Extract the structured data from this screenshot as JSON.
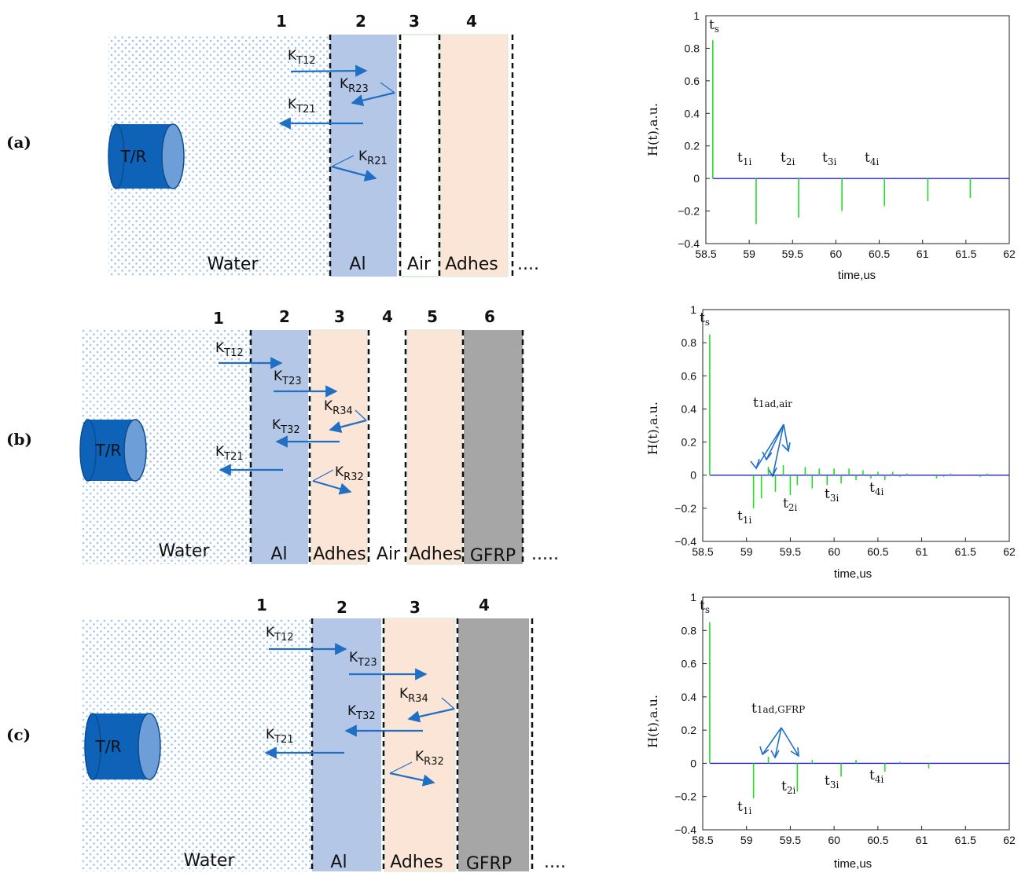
{
  "panels": [
    {
      "id": "a",
      "label": "(a)",
      "transducer": "T/R",
      "layer_numbers": [
        "1",
        "2",
        "3",
        "4"
      ],
      "layers": [
        "Water",
        "Al",
        "Air",
        "Adhes"
      ],
      "ellipsis": "....",
      "coefficients": [
        {
          "main": "K",
          "sub": "T12"
        },
        {
          "main": "K",
          "sub": "R23"
        },
        {
          "main": "K",
          "sub": "T21"
        },
        {
          "main": "K",
          "sub": "R21"
        }
      ]
    },
    {
      "id": "b",
      "label": "(b)",
      "transducer": "T/R",
      "layer_numbers": [
        "1",
        "2",
        "3",
        "4",
        "5",
        "6"
      ],
      "layers": [
        "Water",
        "Al",
        "Adhes",
        "Air",
        "Adhes",
        "GFRP"
      ],
      "ellipsis": ".....",
      "coefficients": [
        {
          "main": "K",
          "sub": "T12"
        },
        {
          "main": "K",
          "sub": "T23"
        },
        {
          "main": "K",
          "sub": "R34"
        },
        {
          "main": "K",
          "sub": "T32"
        },
        {
          "main": "K",
          "sub": "T21"
        },
        {
          "main": "K",
          "sub": "R32"
        }
      ]
    },
    {
      "id": "c",
      "label": "(c)",
      "transducer": "T/R",
      "layer_numbers": [
        "1",
        "2",
        "3",
        "4"
      ],
      "layers": [
        "Water",
        "Al",
        "Adhes",
        "GFRP"
      ],
      "ellipsis": "....",
      "coefficients": [
        {
          "main": "K",
          "sub": "T12"
        },
        {
          "main": "K",
          "sub": "T23"
        },
        {
          "main": "K",
          "sub": "R34"
        },
        {
          "main": "K",
          "sub": "T32"
        },
        {
          "main": "K",
          "sub": "T21"
        },
        {
          "main": "K",
          "sub": "R32"
        }
      ]
    }
  ],
  "colors": {
    "water_dots": "#9ec3ec",
    "al": "#b4c7e7",
    "adhes": "#fbe5d6",
    "gfrp": "#a6a6a6",
    "arrow": "#1f6fc5",
    "transducer_body": "#0e63b8",
    "transducer_face": "#6d9ed8",
    "stem": "#22dd22",
    "baseline": "#2222cc"
  },
  "chart_data": [
    {
      "type": "stem",
      "xlabel": "time,us",
      "ylabel": "H(t),a.u.",
      "xlim": [
        58.5,
        62
      ],
      "ylim": [
        -0.4,
        1
      ],
      "xticks": [
        "58.5",
        "59",
        "59.5",
        "60",
        "60.5",
        "61",
        "61.5",
        "62"
      ],
      "yticks": [
        "1",
        "0.8",
        "0.6",
        "0.4",
        "0.2",
        "0",
        "−0.2",
        "−0.4"
      ],
      "x": [
        58.58,
        59.08,
        59.57,
        60.07,
        60.56,
        61.06,
        61.55
      ],
      "y": [
        0.85,
        -0.28,
        -0.24,
        -0.2,
        -0.17,
        -0.14,
        -0.12
      ],
      "annotations": [
        {
          "main": "t",
          "sub": "s"
        },
        {
          "main": "t",
          "sub": "1i"
        },
        {
          "main": "t",
          "sub": "2i"
        },
        {
          "main": "t",
          "sub": "3i"
        },
        {
          "main": "t",
          "sub": "4i"
        }
      ]
    },
    {
      "type": "stem",
      "xlabel": "time,us",
      "ylabel": "H(t),a.u.",
      "xlim": [
        58.5,
        62
      ],
      "ylim": [
        -0.4,
        1
      ],
      "xticks": [
        "58.5",
        "59",
        "59.5",
        "60",
        "60.5",
        "61",
        "61.5",
        "62"
      ],
      "yticks": [
        "1",
        "0.8",
        "0.6",
        "0.4",
        "0.2",
        "0",
        "−0.2",
        "−0.4"
      ],
      "x": [
        58.58,
        59.08,
        59.17,
        59.25,
        59.33,
        59.42,
        59.5,
        59.58,
        59.67,
        59.75,
        59.83,
        59.92,
        60.0,
        60.08,
        60.17,
        60.25,
        60.33,
        60.42,
        60.5,
        60.58,
        60.67,
        60.75,
        60.83,
        61.17,
        61.25,
        61.33,
        61.67,
        61.75
      ],
      "y": [
        0.85,
        -0.2,
        -0.14,
        0.05,
        -0.1,
        0.06,
        -0.12,
        -0.06,
        0.05,
        -0.08,
        0.04,
        -0.06,
        0.04,
        -0.05,
        0.04,
        -0.03,
        0.03,
        -0.02,
        0.02,
        -0.03,
        0.02,
        -0.01,
        0.01,
        -0.02,
        -0.01,
        0.01,
        -0.01,
        0.01
      ],
      "annotations": [
        {
          "main": "t",
          "sub": "s"
        },
        {
          "main": "t",
          "sub": "1ad,air"
        },
        {
          "main": "t",
          "sub": "1i"
        },
        {
          "main": "t",
          "sub": "2i"
        },
        {
          "main": "t",
          "sub": "3i"
        },
        {
          "main": "t",
          "sub": "4i"
        }
      ]
    },
    {
      "type": "stem",
      "xlabel": "time,us",
      "ylabel": "H(t),a.u.",
      "xlim": [
        58.5,
        62
      ],
      "ylim": [
        -0.4,
        1
      ],
      "xticks": [
        "58.5",
        "59",
        "59.5",
        "60",
        "60.5",
        "61",
        "61.5",
        "62"
      ],
      "yticks": [
        "1",
        "0.8",
        "0.6",
        "0.4",
        "0.2",
        "0",
        "−0.2",
        "−0.4"
      ],
      "x": [
        58.58,
        59.08,
        59.25,
        59.58,
        59.75,
        60.08,
        60.25,
        60.58,
        60.75,
        61.08
      ],
      "y": [
        0.85,
        -0.21,
        0.04,
        -0.17,
        0.02,
        -0.08,
        0.02,
        -0.05,
        0.01,
        -0.03
      ],
      "annotations": [
        {
          "main": "t",
          "sub": "s"
        },
        {
          "main": "t",
          "sub": "1ad,GFRP"
        },
        {
          "main": "t",
          "sub": "1i"
        },
        {
          "main": "t",
          "sub": "2i"
        },
        {
          "main": "t",
          "sub": "3i"
        },
        {
          "main": "t",
          "sub": "4i"
        }
      ]
    }
  ]
}
